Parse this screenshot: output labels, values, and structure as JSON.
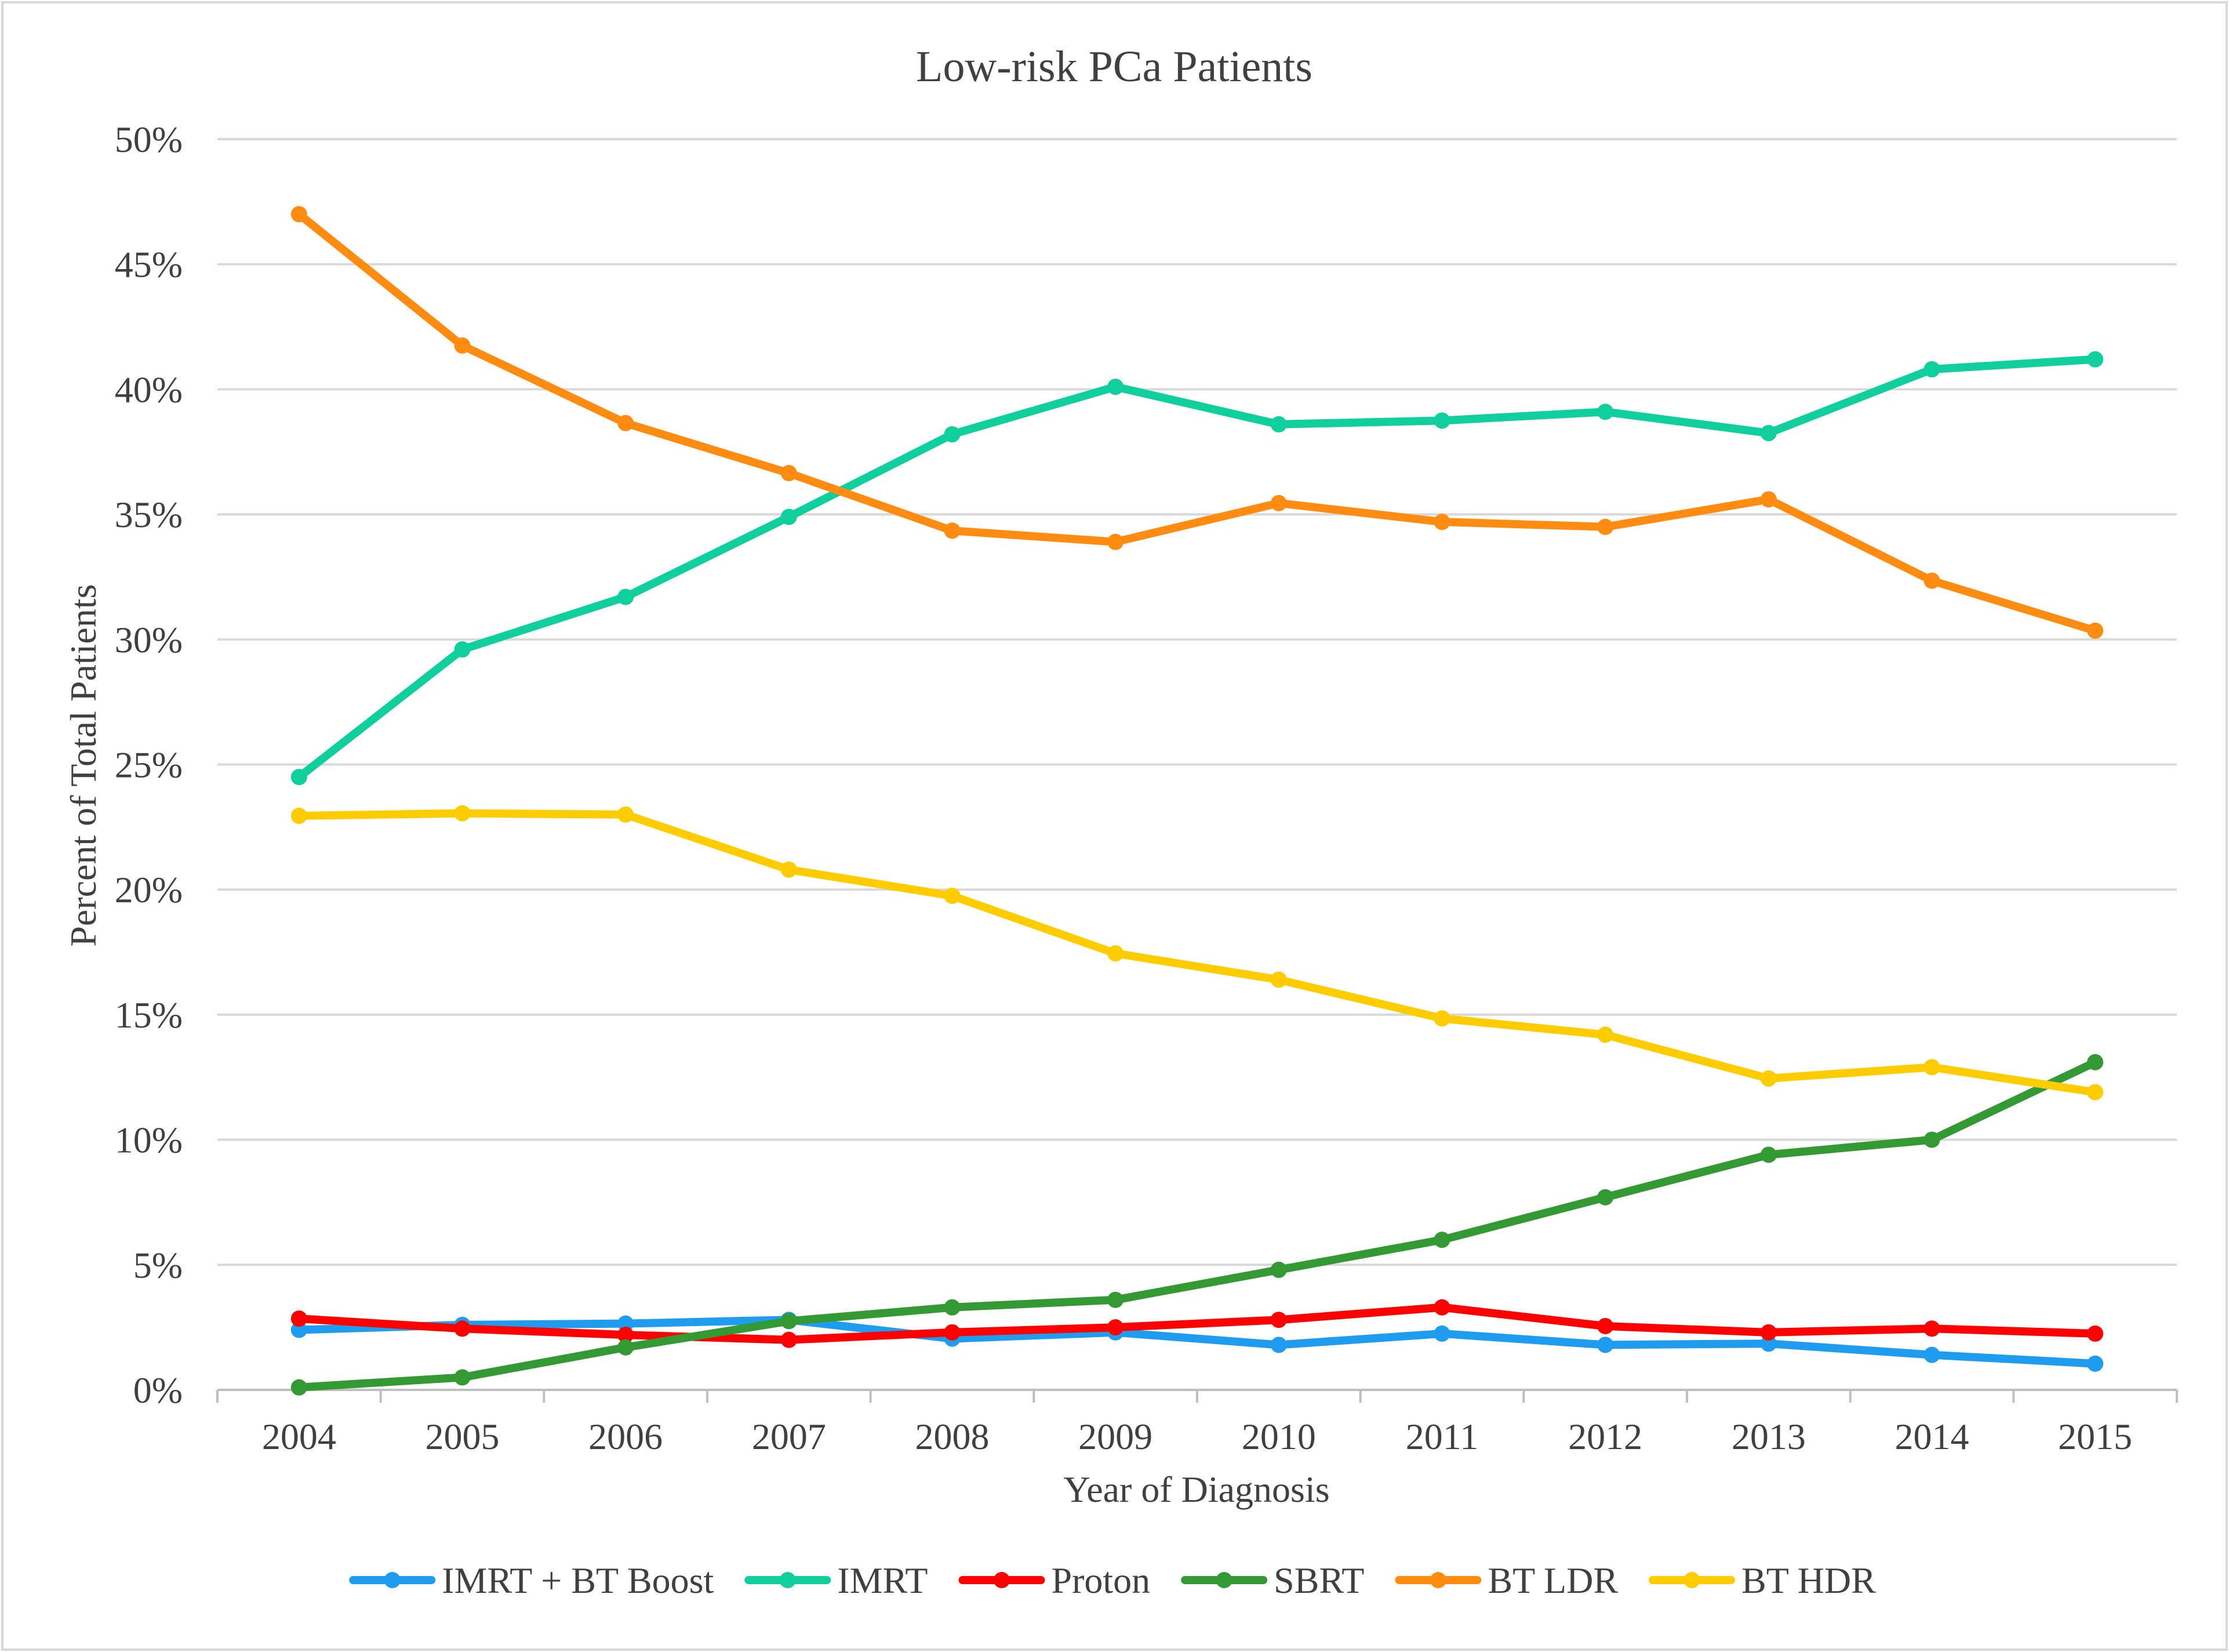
{
  "chart_data": {
    "type": "line",
    "title": "Low-risk PCa Patients",
    "xlabel": "Year of Diagnosis",
    "ylabel": "Percent of Total Patients",
    "categories": [
      "2004",
      "2005",
      "2006",
      "2007",
      "2008",
      "2009",
      "2010",
      "2011",
      "2012",
      "2013",
      "2014",
      "2015"
    ],
    "ylim": [
      0,
      50
    ],
    "yticks": [
      0,
      5,
      10,
      15,
      20,
      25,
      30,
      35,
      40,
      45,
      50
    ],
    "ytick_labels": [
      "0%",
      "5%",
      "10%",
      "15%",
      "20%",
      "25%",
      "30%",
      "35%",
      "40%",
      "45%",
      "50%"
    ],
    "grid": true,
    "legend_position": "bottom",
    "series": [
      {
        "name": "IMRT + BT Boost",
        "color": "#1e9cf0",
        "values": [
          2.4,
          2.6,
          2.65,
          2.8,
          2.05,
          2.3,
          1.8,
          2.25,
          1.8,
          1.85,
          1.4,
          1.05
        ]
      },
      {
        "name": "IMRT",
        "color": "#0fcf9c",
        "values": [
          24.5,
          29.6,
          31.7,
          34.9,
          38.2,
          40.1,
          38.6,
          38.75,
          39.1,
          38.25,
          40.8,
          41.2
        ]
      },
      {
        "name": "Proton",
        "color": "#ff0000",
        "values": [
          2.85,
          2.45,
          2.2,
          2.0,
          2.3,
          2.5,
          2.8,
          3.3,
          2.55,
          2.3,
          2.45,
          2.25
        ]
      },
      {
        "name": "SBRT",
        "color": "#339933",
        "values": [
          0.1,
          0.5,
          1.7,
          2.75,
          3.3,
          3.6,
          4.8,
          6.0,
          7.7,
          9.4,
          10.0,
          13.1
        ]
      },
      {
        "name": "BT LDR",
        "color": "#ff8c10",
        "values": [
          47.0,
          41.75,
          38.65,
          36.65,
          34.35,
          33.9,
          35.45,
          34.7,
          34.5,
          35.6,
          32.35,
          30.35
        ]
      },
      {
        "name": "BT HDR",
        "color": "#ffcc00",
        "values": [
          22.95,
          23.05,
          23.0,
          20.8,
          19.75,
          17.45,
          16.4,
          14.85,
          14.2,
          12.45,
          12.9,
          11.9
        ]
      }
    ]
  }
}
